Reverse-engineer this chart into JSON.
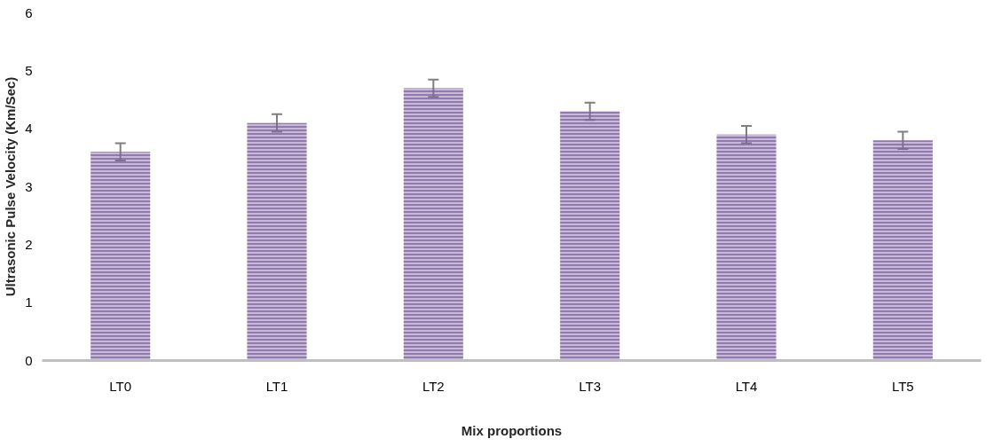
{
  "chart_data": {
    "type": "bar",
    "xlabel": "Mix proportions",
    "ylabel": "Ultrasonic Pulse Velocity (Km/Sec)",
    "categories": [
      "LT0",
      "LT1",
      "LT2",
      "LT3",
      "LT4",
      "LT5"
    ],
    "values": [
      3.6,
      4.1,
      4.7,
      4.3,
      3.9,
      3.8
    ],
    "errors": [
      0.15,
      0.15,
      0.15,
      0.15,
      0.15,
      0.15
    ],
    "color": "#8064a2",
    "ylim": [
      0,
      6
    ],
    "yticks": [
      0,
      1,
      2,
      3,
      4,
      5,
      6
    ],
    "grid": false
  }
}
